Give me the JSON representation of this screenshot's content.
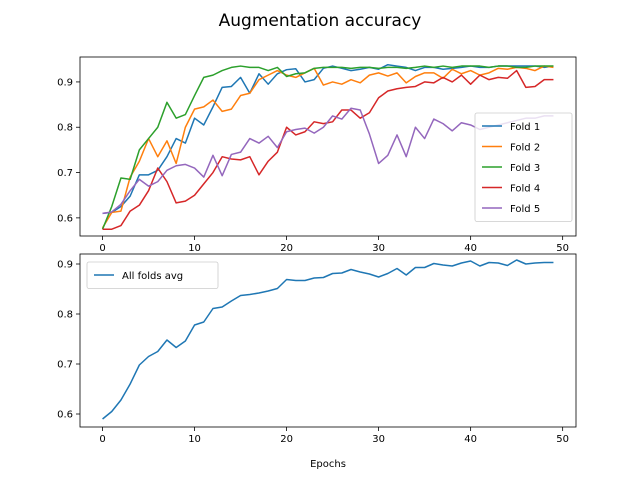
{
  "title": "Augmentation accuracy",
  "chart_data": [
    {
      "type": "line",
      "title": "",
      "xlabel": "",
      "ylabel": "",
      "xlim": [
        -2.45,
        51.45
      ],
      "ylim": [
        0.56,
        0.955
      ],
      "xticks": [
        0,
        10,
        20,
        30,
        40,
        50
      ],
      "yticks": [
        0.6,
        0.7,
        0.8,
        0.9
      ],
      "xtick_labels": [
        "0",
        "10",
        "20",
        "30",
        "40",
        "50"
      ],
      "ytick_labels": [
        "0.6",
        "0.7",
        "0.8",
        "0.9"
      ],
      "grid": false,
      "legend_position": "lower-right",
      "x": [
        0,
        1,
        2,
        3,
        4,
        5,
        6,
        7,
        8,
        9,
        10,
        11,
        12,
        13,
        14,
        15,
        16,
        17,
        18,
        19,
        20,
        21,
        22,
        23,
        24,
        25,
        26,
        27,
        28,
        29,
        30,
        31,
        32,
        33,
        34,
        35,
        36,
        37,
        38,
        39,
        40,
        41,
        42,
        43,
        44,
        45,
        46,
        47,
        48,
        49
      ],
      "series": [
        {
          "name": "Fold 1",
          "color": "#1f77b4",
          "values": [
            0.61,
            0.612,
            0.625,
            0.648,
            0.695,
            0.695,
            0.705,
            0.735,
            0.775,
            0.765,
            0.82,
            0.805,
            0.845,
            0.888,
            0.89,
            0.91,
            0.875,
            0.918,
            0.895,
            0.918,
            0.927,
            0.929,
            0.9,
            0.905,
            0.93,
            0.935,
            0.93,
            0.925,
            0.928,
            0.932,
            0.928,
            0.938,
            0.935,
            0.932,
            0.925,
            0.932,
            0.932,
            0.928,
            0.93,
            0.932,
            0.935,
            0.932,
            0.932,
            0.935,
            0.935,
            0.935,
            0.935,
            0.935,
            0.932,
            0.935
          ]
        },
        {
          "name": "Fold 2",
          "color": "#ff7f0e",
          "values": [
            0.578,
            0.612,
            0.615,
            0.69,
            0.725,
            0.775,
            0.735,
            0.77,
            0.72,
            0.8,
            0.84,
            0.845,
            0.86,
            0.835,
            0.84,
            0.87,
            0.875,
            0.905,
            0.915,
            0.925,
            0.915,
            0.91,
            0.92,
            0.93,
            0.893,
            0.9,
            0.895,
            0.905,
            0.898,
            0.915,
            0.92,
            0.913,
            0.92,
            0.898,
            0.912,
            0.92,
            0.92,
            0.908,
            0.928,
            0.918,
            0.925,
            0.915,
            0.92,
            0.93,
            0.928,
            0.932,
            0.93,
            0.925,
            0.935,
            0.932
          ]
        },
        {
          "name": "Fold 3",
          "color": "#2ca02c",
          "values": [
            0.575,
            0.625,
            0.688,
            0.685,
            0.75,
            0.775,
            0.8,
            0.855,
            0.82,
            0.828,
            0.87,
            0.91,
            0.915,
            0.925,
            0.932,
            0.935,
            0.932,
            0.932,
            0.925,
            0.932,
            0.912,
            0.918,
            0.92,
            0.93,
            0.932,
            0.932,
            0.932,
            0.93,
            0.932,
            0.932,
            0.93,
            0.932,
            0.932,
            0.93,
            0.932,
            0.935,
            0.932,
            0.935,
            0.932,
            0.935,
            0.935,
            0.935,
            0.932,
            0.935,
            0.935,
            0.932,
            0.932,
            0.935,
            0.935,
            0.935
          ]
        },
        {
          "name": "Fold 4",
          "color": "#d62728",
          "values": [
            0.575,
            0.575,
            0.583,
            0.615,
            0.628,
            0.66,
            0.71,
            0.68,
            0.633,
            0.637,
            0.65,
            0.675,
            0.7,
            0.735,
            0.73,
            0.728,
            0.735,
            0.695,
            0.725,
            0.745,
            0.8,
            0.783,
            0.79,
            0.812,
            0.808,
            0.812,
            0.838,
            0.838,
            0.82,
            0.832,
            0.865,
            0.88,
            0.885,
            0.888,
            0.89,
            0.9,
            0.898,
            0.91,
            0.9,
            0.915,
            0.895,
            0.915,
            0.905,
            0.91,
            0.908,
            0.925,
            0.888,
            0.89,
            0.905,
            0.905
          ]
        },
        {
          "name": "Fold 5",
          "color": "#9467bd",
          "values": [
            0.61,
            0.613,
            0.63,
            0.66,
            0.685,
            0.67,
            0.68,
            0.705,
            0.715,
            0.718,
            0.71,
            0.69,
            0.738,
            0.693,
            0.74,
            0.745,
            0.775,
            0.765,
            0.78,
            0.755,
            0.79,
            0.795,
            0.798,
            0.787,
            0.8,
            0.825,
            0.818,
            0.842,
            0.838,
            0.785,
            0.72,
            0.738,
            0.783,
            0.735,
            0.8,
            0.775,
            0.818,
            0.808,
            0.792,
            0.81,
            0.805,
            0.795,
            0.8,
            0.805,
            0.81,
            0.815,
            0.82,
            0.82,
            0.825,
            0.825
          ]
        }
      ]
    },
    {
      "type": "line",
      "title": "",
      "xlabel": "Epochs",
      "ylabel": "",
      "xlim": [
        -2.45,
        51.45
      ],
      "ylim": [
        0.574,
        0.92
      ],
      "xticks": [
        0,
        10,
        20,
        30,
        40,
        50
      ],
      "yticks": [
        0.6,
        0.7,
        0.8,
        0.9
      ],
      "xtick_labels": [
        "0",
        "10",
        "20",
        "30",
        "40",
        "50"
      ],
      "ytick_labels": [
        "0.6",
        "0.7",
        "0.8",
        "0.9"
      ],
      "grid": false,
      "legend_position": "upper-left",
      "x": [
        0,
        1,
        2,
        3,
        4,
        5,
        6,
        7,
        8,
        9,
        10,
        11,
        12,
        13,
        14,
        15,
        16,
        17,
        18,
        19,
        20,
        21,
        22,
        23,
        24,
        25,
        26,
        27,
        28,
        29,
        30,
        31,
        32,
        33,
        34,
        35,
        36,
        37,
        38,
        39,
        40,
        41,
        42,
        43,
        44,
        45,
        46,
        47,
        48,
        49
      ],
      "series": [
        {
          "name": "All folds avg",
          "color": "#1f77b4",
          "values": [
            0.59,
            0.605,
            0.628,
            0.66,
            0.698,
            0.715,
            0.725,
            0.748,
            0.733,
            0.746,
            0.778,
            0.784,
            0.811,
            0.814,
            0.826,
            0.837,
            0.839,
            0.842,
            0.846,
            0.851,
            0.869,
            0.867,
            0.867,
            0.872,
            0.873,
            0.881,
            0.882,
            0.889,
            0.884,
            0.88,
            0.874,
            0.881,
            0.891,
            0.878,
            0.893,
            0.893,
            0.901,
            0.898,
            0.896,
            0.902,
            0.906,
            0.896,
            0.903,
            0.902,
            0.897,
            0.908,
            0.9,
            0.902,
            0.903,
            0.903
          ]
        }
      ]
    }
  ]
}
